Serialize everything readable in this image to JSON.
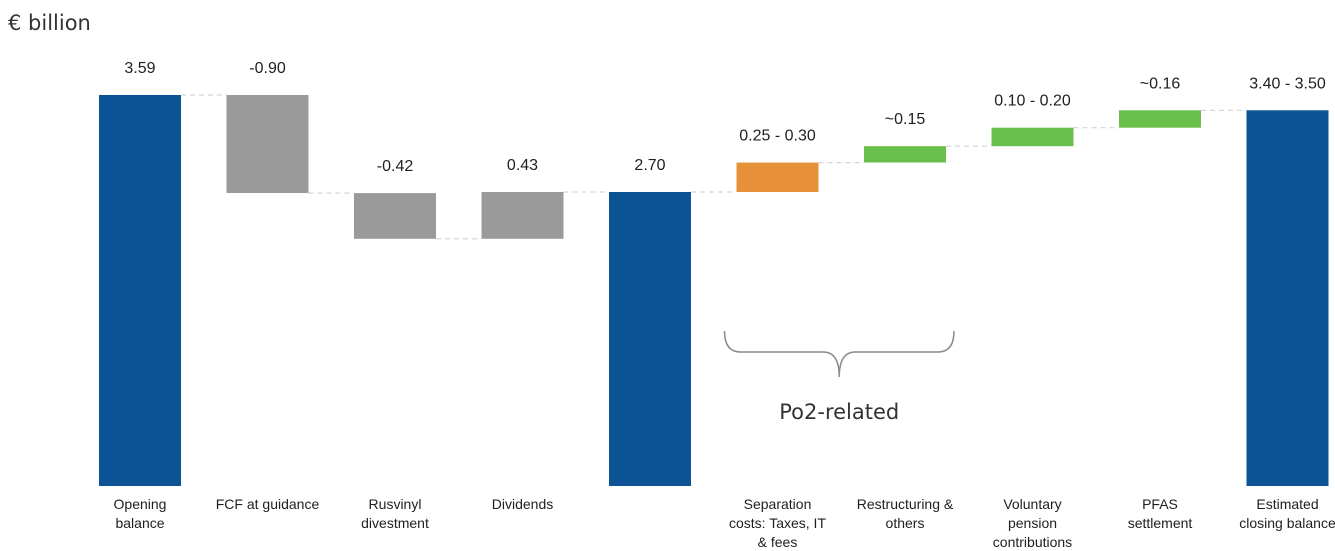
{
  "unit_label": "€ billion",
  "colors": {
    "balance": "#0b5394",
    "outflow": "#9a9a9a",
    "separation": "#e69138",
    "inflow": "#6abf4b",
    "connector": "#d4d4d4",
    "bracket": "#8a8a8a"
  },
  "chart_data": {
    "type": "bar",
    "subtype": "waterfall",
    "title": "",
    "ylabel": "€ billion",
    "ylim": [
      0,
      3.7
    ],
    "grid": false,
    "legend": "none",
    "categories": [
      [
        "Opening",
        "balance"
      ],
      [
        "FCF at guidance"
      ],
      [
        "Rusvinyl",
        "divestment"
      ],
      [
        "Dividends"
      ],
      [
        ""
      ],
      [
        "Separation",
        "costs: Taxes, IT",
        "& fees"
      ],
      [
        "Restructuring &",
        "others"
      ],
      [
        "Voluntary",
        "pension",
        "contributions"
      ],
      [
        "PFAS",
        "settlement"
      ],
      [
        "Estimated",
        "closing balance"
      ]
    ],
    "value_labels": [
      "3.59",
      "-0.90",
      "-0.42",
      "0.43",
      "2.70",
      "0.25 - 0.30",
      "~0.15",
      "0.10 - 0.20",
      "~0.16",
      "3.40 - 3.50"
    ],
    "bars": [
      {
        "start": 0,
        "end": 3.59,
        "kind": "balance"
      },
      {
        "start": 3.59,
        "end": 2.69,
        "kind": "outflow"
      },
      {
        "start": 2.69,
        "end": 2.27,
        "kind": "outflow"
      },
      {
        "start": 2.27,
        "end": 2.7,
        "kind": "outflow"
      },
      {
        "start": 0,
        "end": 2.7,
        "kind": "balance"
      },
      {
        "start": 2.7,
        "end": 2.97,
        "kind": "separation"
      },
      {
        "start": 2.97,
        "end": 3.12,
        "kind": "inflow"
      },
      {
        "start": 3.12,
        "end": 3.29,
        "kind": "inflow"
      },
      {
        "start": 3.29,
        "end": 3.45,
        "kind": "inflow"
      },
      {
        "start": 0,
        "end": 3.45,
        "kind": "balance"
      }
    ],
    "annotations": [
      {
        "text": "Po2-related",
        "spans": [
          5,
          6
        ]
      }
    ]
  }
}
